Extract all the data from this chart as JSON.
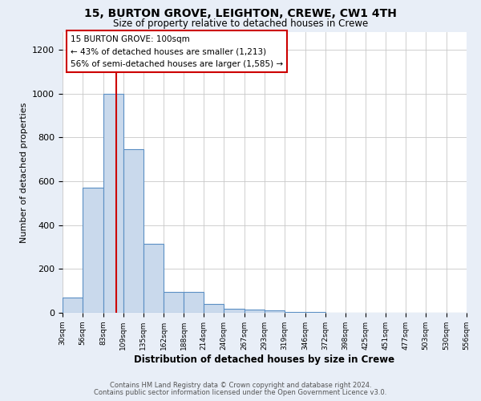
{
  "title": "15, BURTON GROVE, LEIGHTON, CREWE, CW1 4TH",
  "subtitle": "Size of property relative to detached houses in Crewe",
  "xlabel": "Distribution of detached houses by size in Crewe",
  "ylabel": "Number of detached properties",
  "bar_edges": [
    30,
    56,
    83,
    109,
    135,
    162,
    188,
    214,
    240,
    267,
    293,
    319,
    346,
    372,
    398,
    425,
    451,
    477,
    503,
    530,
    556
  ],
  "bar_heights": [
    70,
    570,
    1000,
    745,
    315,
    95,
    95,
    40,
    20,
    15,
    10,
    5,
    5,
    0,
    0,
    0,
    0,
    0,
    0,
    0
  ],
  "bar_color": "#c9d9ec",
  "bar_edge_color": "#5b8fc4",
  "property_line_x": 100,
  "property_line_color": "#cc0000",
  "annotation_line1": "15 BURTON GROVE: 100sqm",
  "annotation_line2": "← 43% of detached houses are smaller (1,213)",
  "annotation_line3": "56% of semi-detached houses are larger (1,585) →",
  "annotation_box_edge_color": "#cc0000",
  "annotation_box_face_color": "white",
  "ylim": [
    0,
    1280
  ],
  "yticks": [
    0,
    200,
    400,
    600,
    800,
    1000,
    1200
  ],
  "tick_labels": [
    "30sqm",
    "56sqm",
    "83sqm",
    "109sqm",
    "135sqm",
    "162sqm",
    "188sqm",
    "214sqm",
    "240sqm",
    "267sqm",
    "293sqm",
    "319sqm",
    "346sqm",
    "372sqm",
    "398sqm",
    "425sqm",
    "451sqm",
    "477sqm",
    "503sqm",
    "530sqm",
    "556sqm"
  ],
  "footer_line1": "Contains HM Land Registry data © Crown copyright and database right 2024.",
  "footer_line2": "Contains public sector information licensed under the Open Government Licence v3.0.",
  "bg_color": "#e8eef7",
  "plot_bg_color": "#ffffff",
  "grid_color": "#c8c8c8"
}
